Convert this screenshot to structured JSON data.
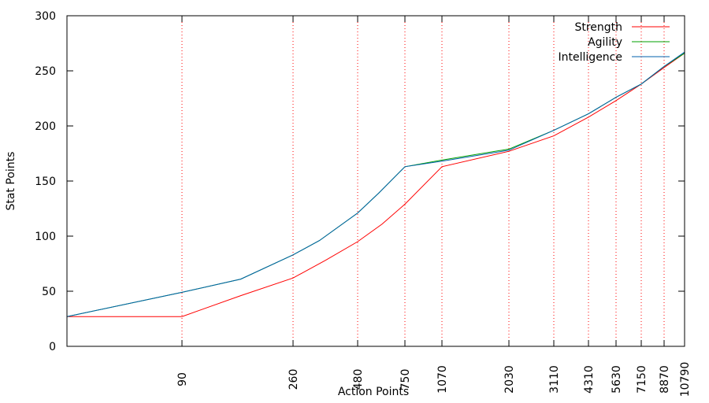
{
  "chart_data": {
    "type": "line",
    "title": "",
    "xlabel": "Action Points",
    "ylabel": "Stat Points",
    "ylim": [
      0,
      300
    ],
    "yticks": [
      0,
      50,
      100,
      150,
      200,
      250,
      300
    ],
    "x_scale_note": "piecewise-uniform between marked ticks",
    "x_anchor_values": [
      0,
      90,
      260,
      480,
      750,
      1070,
      2030,
      3110,
      4310,
      5630,
      7150,
      8870,
      10790
    ],
    "xtick_labels": [
      "90",
      "260",
      "480",
      "750",
      "1070",
      "2030",
      "3110",
      "4310",
      "5630",
      "7150",
      "8870",
      "10790"
    ],
    "vertical_reference_lines": [
      90,
      260,
      480,
      750,
      1070,
      2030,
      3110,
      4310,
      5630,
      7150,
      8870
    ],
    "grid": false,
    "legend_position": "top-right",
    "series": [
      {
        "name": "Strength",
        "color": "#ff0000",
        "points": [
          [
            0,
            27
          ],
          [
            90,
            27
          ],
          [
            180,
            46
          ],
          [
            260,
            62
          ],
          [
            370,
            78
          ],
          [
            480,
            95
          ],
          [
            620,
            111
          ],
          [
            750,
            129
          ],
          [
            1070,
            163
          ],
          [
            2030,
            177
          ],
          [
            3110,
            191
          ],
          [
            4310,
            208
          ],
          [
            5630,
            223
          ],
          [
            7150,
            238
          ],
          [
            8870,
            253
          ],
          [
            10790,
            266
          ]
        ]
      },
      {
        "name": "Agility",
        "color": "#00a000",
        "points": [
          [
            0,
            27
          ],
          [
            90,
            49
          ],
          [
            180,
            61
          ],
          [
            260,
            83
          ],
          [
            350,
            96
          ],
          [
            480,
            121
          ],
          [
            600,
            139
          ],
          [
            750,
            163
          ],
          [
            1070,
            169
          ],
          [
            2030,
            179
          ],
          [
            3110,
            196
          ],
          [
            4310,
            211
          ],
          [
            5630,
            226
          ],
          [
            7150,
            238
          ],
          [
            8870,
            254
          ],
          [
            10790,
            266
          ]
        ]
      },
      {
        "name": "Intelligence",
        "color": "#0060ad",
        "points": [
          [
            0,
            27
          ],
          [
            90,
            49
          ],
          [
            180,
            61
          ],
          [
            260,
            83
          ],
          [
            350,
            96
          ],
          [
            480,
            121
          ],
          [
            600,
            139
          ],
          [
            750,
            163
          ],
          [
            1070,
            168
          ],
          [
            2030,
            178
          ],
          [
            3110,
            196
          ],
          [
            4310,
            211
          ],
          [
            5630,
            226
          ],
          [
            7150,
            238
          ],
          [
            8870,
            254
          ],
          [
            10790,
            267
          ]
        ]
      }
    ]
  }
}
